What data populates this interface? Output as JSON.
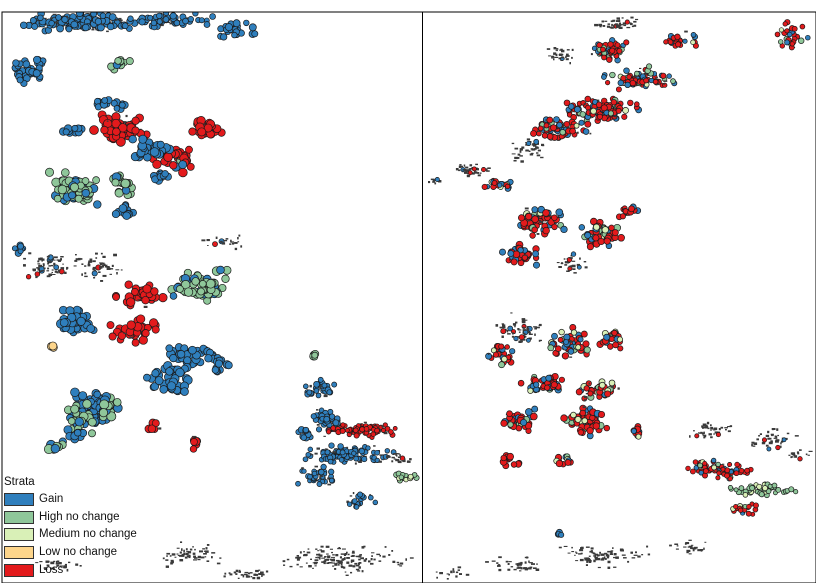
{
  "legend": {
    "title": "Strata",
    "items": [
      {
        "label": "Gain",
        "color": "#2f7fbd"
      },
      {
        "label": "High no change",
        "color": "#8fc79a"
      },
      {
        "label": "Medium no change",
        "color": "#d9f0b7"
      },
      {
        "label": "Low no change",
        "color": "#fdd58b"
      },
      {
        "label": "Loss",
        "color": "#e31a1c"
      }
    ]
  },
  "panels": [
    {
      "name": "left-map-panel"
    },
    {
      "name": "right-map-panel"
    }
  ],
  "colors": {
    "gain": "#2f7fbd",
    "high_no_change": "#8fc79a",
    "medium_no_change": "#d9f0b7",
    "low_no_change": "#fdd58b",
    "loss": "#e31a1c",
    "unsampled": "#3a3a3a",
    "outline": "#1a1a1a",
    "frame": "#000000"
  }
}
